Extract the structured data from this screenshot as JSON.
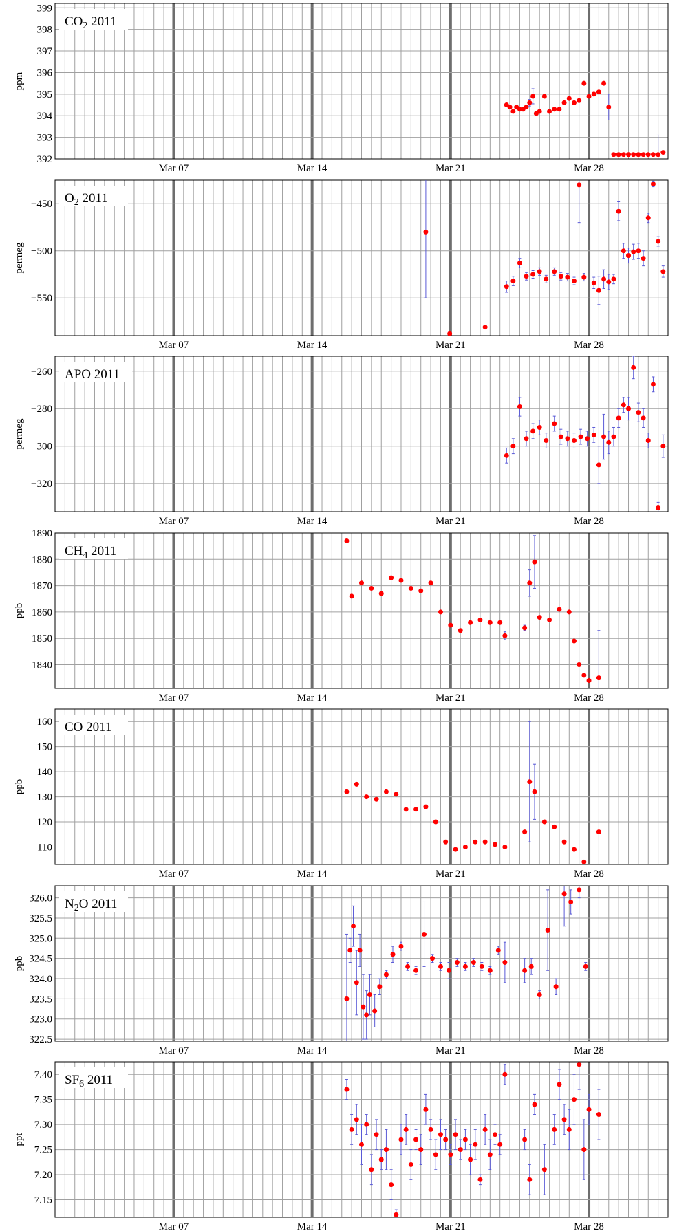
{
  "x_tick_labels": [
    "Mar 07",
    "Mar 14",
    "Mar 21",
    "Mar 28"
  ],
  "colors": {
    "point": "#ff0000",
    "errorbar": "#5a5ad6",
    "grid": "#a0a0a0",
    "major_grid": "#6e6e6e"
  },
  "chart_data": [
    {
      "type": "scatter",
      "title": "CO₂ 2011",
      "title_main": "CO",
      "title_sub": "2",
      "title_tail": " 2011",
      "ylabel": "ppm",
      "xlim": [
        "2011-03-01",
        "2011-04-01"
      ],
      "ylim": [
        392,
        399.2
      ],
      "yticks": [
        392,
        393,
        394,
        395,
        396,
        397,
        398,
        399
      ],
      "ytick_labels": [
        "392",
        "393",
        "394",
        "395",
        "396",
        "397",
        "398",
        "399"
      ],
      "x": [
        "2011-03-23T20:00",
        "2011-03-24T00:00",
        "2011-03-24T04:00",
        "2011-03-24T08:00",
        "2011-03-24T12:00",
        "2011-03-24T16:00",
        "2011-03-24T20:00",
        "2011-03-25T00:00",
        "2011-03-25T04:00",
        "2011-03-25T08:00",
        "2011-03-25T12:00",
        "2011-03-25T18:00",
        "2011-03-26T00:00",
        "2011-03-26T06:00",
        "2011-03-26T12:00",
        "2011-03-26T18:00",
        "2011-03-27T00:00",
        "2011-03-27T06:00",
        "2011-03-27T12:00",
        "2011-03-27T18:00",
        "2011-03-28T00:00",
        "2011-03-28T06:00",
        "2011-03-28T12:00",
        "2011-03-28T18:00",
        "2011-03-29T00:00",
        "2011-03-29T06:00",
        "2011-03-29T12:00",
        "2011-03-29T18:00",
        "2011-03-30T00:00",
        "2011-03-30T06:00",
        "2011-03-30T12:00",
        "2011-03-30T18:00",
        "2011-03-31T00:00",
        "2011-03-31T06:00",
        "2011-03-31T12:00",
        "2011-03-31T18:00"
      ],
      "y": [
        394.5,
        394.4,
        394.2,
        394.4,
        394.3,
        394.3,
        394.4,
        394.6,
        394.9,
        394.1,
        394.2,
        394.9,
        394.2,
        394.3,
        394.3,
        394.6,
        394.8,
        394.6,
        394.7,
        395.5,
        394.9,
        395.0,
        395.1,
        395.5,
        394.4,
        392.2,
        392.2,
        392.2,
        392.2,
        392.2,
        392.2,
        392.2,
        392.2,
        392.2,
        392.2,
        392.3
      ],
      "err": [
        0.05,
        0.08,
        0.05,
        0.05,
        0.05,
        0.05,
        0.05,
        0.15,
        0.35,
        0.05,
        0.05,
        0.05,
        0.05,
        0.05,
        0.05,
        0.05,
        0.05,
        0.05,
        0.05,
        0.08,
        0.05,
        0.05,
        0.05,
        0.05,
        0.6,
        0.05,
        0.05,
        0.05,
        0.05,
        0.05,
        0.05,
        0.05,
        0.05,
        0.05,
        0.9,
        0.05
      ]
    },
    {
      "type": "scatter",
      "title": "O₂ 2011",
      "title_main": "O",
      "title_sub": "2",
      "title_tail": " 2011",
      "ylabel": "permeg",
      "xlim": [
        "2011-03-01",
        "2011-04-01"
      ],
      "ylim": [
        -590,
        -425
      ],
      "yticks": [
        -550,
        -500,
        -450
      ],
      "ytick_labels": [
        "−550",
        "−500",
        "−450"
      ],
      "x": [
        "2011-03-19T18:00",
        "2011-03-20T23:00",
        "2011-03-22T18:00",
        "2011-03-23T20:00",
        "2011-03-24T04:00",
        "2011-03-24T12:00",
        "2011-03-24T20:00",
        "2011-03-25T04:00",
        "2011-03-25T12:00",
        "2011-03-25T20:00",
        "2011-03-26T06:00",
        "2011-03-26T14:00",
        "2011-03-26T22:00",
        "2011-03-27T06:00",
        "2011-03-27T12:00",
        "2011-03-27T18:00",
        "2011-03-28T06:00",
        "2011-03-28T12:00",
        "2011-03-28T18:00",
        "2011-03-29T00:00",
        "2011-03-29T06:00",
        "2011-03-29T12:00",
        "2011-03-29T18:00",
        "2011-03-30T00:00",
        "2011-03-30T06:00",
        "2011-03-30T12:00",
        "2011-03-30T18:00",
        "2011-03-31T00:00",
        "2011-03-31T06:00",
        "2011-03-31T12:00",
        "2011-03-31T18:00"
      ],
      "y": [
        -480,
        -588,
        -581,
        -538,
        -532,
        -513,
        -527,
        -525,
        -522,
        -530,
        -522,
        -527,
        -528,
        -532,
        -430,
        -528,
        -534,
        -542,
        -530,
        -533,
        -530,
        -458,
        -500,
        -505,
        -501,
        -500,
        -508,
        -465,
        -429,
        -490,
        -522
      ],
      "err": [
        70,
        2,
        2,
        6,
        5,
        5,
        4,
        4,
        4,
        4,
        4,
        4,
        4,
        4,
        40,
        4,
        6,
        15,
        10,
        8,
        5,
        10,
        8,
        8,
        8,
        8,
        8,
        5,
        3,
        5,
        6
      ]
    },
    {
      "type": "scatter",
      "title": "APO 2011",
      "title_main": "APO",
      "title_sub": "",
      "title_tail": " 2011",
      "ylabel": "permeg",
      "xlim": [
        "2011-03-01",
        "2011-04-01"
      ],
      "ylim": [
        -335,
        -252
      ],
      "yticks": [
        -320,
        -300,
        -280,
        -260
      ],
      "ytick_labels": [
        "−320",
        "−300",
        "−280",
        "−260"
      ],
      "x": [
        "2011-03-23T20:00",
        "2011-03-24T04:00",
        "2011-03-24T12:00",
        "2011-03-24T20:00",
        "2011-03-25T04:00",
        "2011-03-25T12:00",
        "2011-03-25T20:00",
        "2011-03-26T06:00",
        "2011-03-26T14:00",
        "2011-03-26T22:00",
        "2011-03-27T06:00",
        "2011-03-27T14:00",
        "2011-03-27T22:00",
        "2011-03-28T06:00",
        "2011-03-28T12:00",
        "2011-03-28T18:00",
        "2011-03-29T00:00",
        "2011-03-29T06:00",
        "2011-03-29T12:00",
        "2011-03-29T18:00",
        "2011-03-30T00:00",
        "2011-03-30T06:00",
        "2011-03-30T12:00",
        "2011-03-30T18:00",
        "2011-03-31T00:00",
        "2011-03-31T06:00",
        "2011-03-31T12:00",
        "2011-03-31T18:00"
      ],
      "y": [
        -305,
        -300,
        -279,
        -296,
        -292,
        -290,
        -297,
        -288,
        -295,
        -296,
        -297,
        -295,
        -296,
        -294,
        -310,
        -295,
        -298,
        -295,
        -285,
        -278,
        -280,
        -258,
        -282,
        -285,
        -297,
        -267,
        -333,
        -300
      ],
      "err": [
        4,
        4,
        5,
        4,
        4,
        4,
        4,
        4,
        4,
        4,
        4,
        4,
        4,
        4,
        10,
        12,
        6,
        5,
        5,
        4,
        6,
        6,
        5,
        5,
        4,
        4,
        3,
        6
      ]
    },
    {
      "type": "scatter",
      "title": "CH₄ 2011",
      "title_main": "CH",
      "title_sub": "4",
      "title_tail": " 2011",
      "ylabel": "ppb",
      "xlim": [
        "2011-03-01",
        "2011-04-01"
      ],
      "ylim": [
        1831,
        1890
      ],
      "yticks": [
        1840,
        1850,
        1860,
        1870,
        1880,
        1890
      ],
      "ytick_labels": [
        "1840",
        "1850",
        "1860",
        "1870",
        "1880",
        "1890"
      ],
      "x": [
        "2011-03-15T18:00",
        "2011-03-16T00:00",
        "2011-03-16T12:00",
        "2011-03-17T00:00",
        "2011-03-17T12:00",
        "2011-03-18T00:00",
        "2011-03-18T12:00",
        "2011-03-19T00:00",
        "2011-03-19T12:00",
        "2011-03-20T00:00",
        "2011-03-20T12:00",
        "2011-03-21T00:00",
        "2011-03-21T12:00",
        "2011-03-22T00:00",
        "2011-03-22T12:00",
        "2011-03-23T00:00",
        "2011-03-23T12:00",
        "2011-03-23T18:00",
        "2011-03-24T18:00",
        "2011-03-25T00:00",
        "2011-03-25T06:00",
        "2011-03-25T12:00",
        "2011-03-26T00:00",
        "2011-03-26T12:00",
        "2011-03-27T00:00",
        "2011-03-27T06:00",
        "2011-03-27T12:00",
        "2011-03-27T18:00",
        "2011-03-28T00:00",
        "2011-03-28T12:00"
      ],
      "y": [
        1887,
        1866,
        1871,
        1869,
        1867,
        1873,
        1872,
        1869,
        1868,
        1871,
        1860,
        1855,
        1853,
        1856,
        1857,
        1856,
        1856,
        1851,
        1854,
        1871,
        1879,
        1858,
        1857,
        1861,
        1860,
        1849,
        1840,
        1836,
        1834,
        1835
      ],
      "err": [
        0.3,
        0.3,
        0.3,
        0.3,
        0.3,
        0.3,
        0.3,
        0.3,
        0.3,
        0.3,
        0.5,
        0.5,
        0.5,
        0.5,
        0.5,
        0.5,
        0.5,
        1.5,
        1,
        5,
        10,
        0.5,
        0.5,
        0.5,
        0.5,
        0.5,
        0.5,
        0.5,
        0.5,
        18
      ]
    },
    {
      "type": "scatter",
      "title": "CO 2011",
      "title_main": "CO",
      "title_sub": "",
      "title_tail": " 2011",
      "ylabel": "ppb",
      "xlim": [
        "2011-03-01",
        "2011-04-01"
      ],
      "ylim": [
        103,
        165
      ],
      "yticks": [
        110,
        120,
        130,
        140,
        150,
        160
      ],
      "ytick_labels": [
        "110",
        "120",
        "130",
        "140",
        "150",
        "160"
      ],
      "x": [
        "2011-03-15T18:00",
        "2011-03-16T06:00",
        "2011-03-16T18:00",
        "2011-03-17T06:00",
        "2011-03-17T18:00",
        "2011-03-18T06:00",
        "2011-03-18T18:00",
        "2011-03-19T06:00",
        "2011-03-19T18:00",
        "2011-03-20T06:00",
        "2011-03-20T18:00",
        "2011-03-21T06:00",
        "2011-03-21T18:00",
        "2011-03-22T06:00",
        "2011-03-22T18:00",
        "2011-03-23T06:00",
        "2011-03-23T18:00",
        "2011-03-24T18:00",
        "2011-03-25T00:00",
        "2011-03-25T06:00",
        "2011-03-25T18:00",
        "2011-03-26T06:00",
        "2011-03-26T18:00",
        "2011-03-27T06:00",
        "2011-03-27T18:00",
        "2011-03-28T12:00"
      ],
      "y": [
        132,
        135,
        130,
        129,
        132,
        131,
        125,
        125,
        126,
        120,
        112,
        109,
        110,
        112,
        112,
        111,
        110,
        116,
        136,
        132,
        120,
        118,
        112,
        109,
        104,
        116
      ],
      "err": [
        0.3,
        0.3,
        0.3,
        0.3,
        0.3,
        0.3,
        0.3,
        0.3,
        0.3,
        0.3,
        0.5,
        0.5,
        0.5,
        0.5,
        0.5,
        0.5,
        0.5,
        0.5,
        24,
        11,
        0.5,
        0.5,
        0.5,
        0.5,
        0.5,
        0.5
      ]
    },
    {
      "type": "scatter",
      "title": "N₂O 2011",
      "title_main": "N",
      "title_sub": "2",
      "title_tail": "O 2011",
      "ylabel": "ppb",
      "xlim": [
        "2011-03-01",
        "2011-04-01"
      ],
      "ylim": [
        322.45,
        326.3
      ],
      "yticks": [
        322.5,
        323.0,
        323.5,
        324.0,
        324.5,
        325.0,
        325.5,
        326.0
      ],
      "ytick_labels": [
        "322.5",
        "323.0",
        "323.5",
        "324.0",
        "324.5",
        "325.0",
        "325.5",
        "326.0"
      ],
      "x": [
        "2011-03-15T18:00",
        "2011-03-15T22:00",
        "2011-03-16T02:00",
        "2011-03-16T06:00",
        "2011-03-16T10:00",
        "2011-03-16T14:00",
        "2011-03-16T18:00",
        "2011-03-16T22:00",
        "2011-03-17T04:00",
        "2011-03-17T10:00",
        "2011-03-17T18:00",
        "2011-03-18T02:00",
        "2011-03-18T12:00",
        "2011-03-18T20:00",
        "2011-03-19T06:00",
        "2011-03-19T16:00",
        "2011-03-20T02:00",
        "2011-03-20T12:00",
        "2011-03-20T22:00",
        "2011-03-21T08:00",
        "2011-03-21T18:00",
        "2011-03-22T04:00",
        "2011-03-22T14:00",
        "2011-03-23T00:00",
        "2011-03-23T10:00",
        "2011-03-23T18:00",
        "2011-03-24T18:00",
        "2011-03-25T02:00",
        "2011-03-25T12:00",
        "2011-03-25T22:00",
        "2011-03-26T08:00",
        "2011-03-26T18:00",
        "2011-03-27T02:00",
        "2011-03-27T12:00",
        "2011-03-27T20:00"
      ],
      "y": [
        323.5,
        324.7,
        325.3,
        323.9,
        324.7,
        323.3,
        323.1,
        323.6,
        323.2,
        323.8,
        324.1,
        324.6,
        324.8,
        324.3,
        324.2,
        325.1,
        324.5,
        324.3,
        324.2,
        324.4,
        324.3,
        324.4,
        324.3,
        324.2,
        324.7,
        324.4,
        324.2,
        324.3,
        323.6,
        325.2,
        323.8,
        326.1,
        325.9,
        326.2,
        324.3
      ],
      "err": [
        1.6,
        0.3,
        0.5,
        0.8,
        0.4,
        0.8,
        0.6,
        0.5,
        0.4,
        0.2,
        0.1,
        0.2,
        0.1,
        0.1,
        0.1,
        0.8,
        0.1,
        0.1,
        0.2,
        0.1,
        0.1,
        0.1,
        0.1,
        0.1,
        0.1,
        0.5,
        0.3,
        0.2,
        0.1,
        1.0,
        0.2,
        0.8,
        0.3,
        0.2,
        0.1
      ]
    },
    {
      "type": "scatter",
      "title": "SF₆ 2011",
      "title_main": "SF",
      "title_sub": "6",
      "title_tail": " 2011",
      "ylabel": "ppt",
      "xlim": [
        "2011-03-01",
        "2011-04-01"
      ],
      "ylim": [
        7.115,
        7.425
      ],
      "yticks": [
        7.15,
        7.2,
        7.25,
        7.3,
        7.35,
        7.4
      ],
      "ytick_labels": [
        "7.15",
        "7.20",
        "7.25",
        "7.30",
        "7.35",
        "7.40"
      ],
      "x": [
        "2011-03-15T18:00",
        "2011-03-16T00:00",
        "2011-03-16T06:00",
        "2011-03-16T12:00",
        "2011-03-16T18:00",
        "2011-03-17T00:00",
        "2011-03-17T06:00",
        "2011-03-17T12:00",
        "2011-03-17T18:00",
        "2011-03-18T00:00",
        "2011-03-18T06:00",
        "2011-03-18T12:00",
        "2011-03-18T18:00",
        "2011-03-19T00:00",
        "2011-03-19T06:00",
        "2011-03-19T12:00",
        "2011-03-19T18:00",
        "2011-03-20T00:00",
        "2011-03-20T06:00",
        "2011-03-20T12:00",
        "2011-03-20T18:00",
        "2011-03-21T00:00",
        "2011-03-21T06:00",
        "2011-03-21T12:00",
        "2011-03-21T18:00",
        "2011-03-22T00:00",
        "2011-03-22T06:00",
        "2011-03-22T12:00",
        "2011-03-22T18:00",
        "2011-03-23T00:00",
        "2011-03-23T06:00",
        "2011-03-23T12:00",
        "2011-03-23T18:00",
        "2011-03-24T18:00",
        "2011-03-25T00:00",
        "2011-03-25T06:00",
        "2011-03-25T18:00",
        "2011-03-26T06:00",
        "2011-03-26T12:00",
        "2011-03-26T18:00",
        "2011-03-27T00:00",
        "2011-03-27T06:00",
        "2011-03-27T12:00",
        "2011-03-27T18:00",
        "2011-03-28T00:00",
        "2011-03-28T12:00"
      ],
      "y": [
        7.37,
        7.29,
        7.31,
        7.26,
        7.3,
        7.21,
        7.28,
        7.23,
        7.25,
        7.18,
        7.12,
        7.27,
        7.29,
        7.22,
        7.27,
        7.25,
        7.33,
        7.29,
        7.24,
        7.28,
        7.27,
        7.24,
        7.28,
        7.25,
        7.27,
        7.23,
        7.26,
        7.19,
        7.29,
        7.24,
        7.28,
        7.26,
        7.4,
        7.27,
        7.19,
        7.34,
        7.21,
        7.29,
        7.38,
        7.31,
        7.29,
        7.35,
        7.42,
        7.25,
        7.33,
        7.32
      ],
      "err": [
        0.02,
        0.03,
        0.03,
        0.04,
        0.02,
        0.03,
        0.03,
        0.02,
        0.04,
        0.03,
        0.01,
        0.03,
        0.03,
        0.03,
        0.02,
        0.03,
        0.03,
        0.02,
        0.03,
        0.03,
        0.02,
        0.02,
        0.03,
        0.02,
        0.02,
        0.03,
        0.03,
        0.01,
        0.03,
        0.03,
        0.02,
        0.02,
        0.02,
        0.02,
        0.03,
        0.02,
        0.05,
        0.03,
        0.03,
        0.03,
        0.04,
        0.05,
        0.05,
        0.06,
        0.03,
        0.05
      ]
    }
  ]
}
